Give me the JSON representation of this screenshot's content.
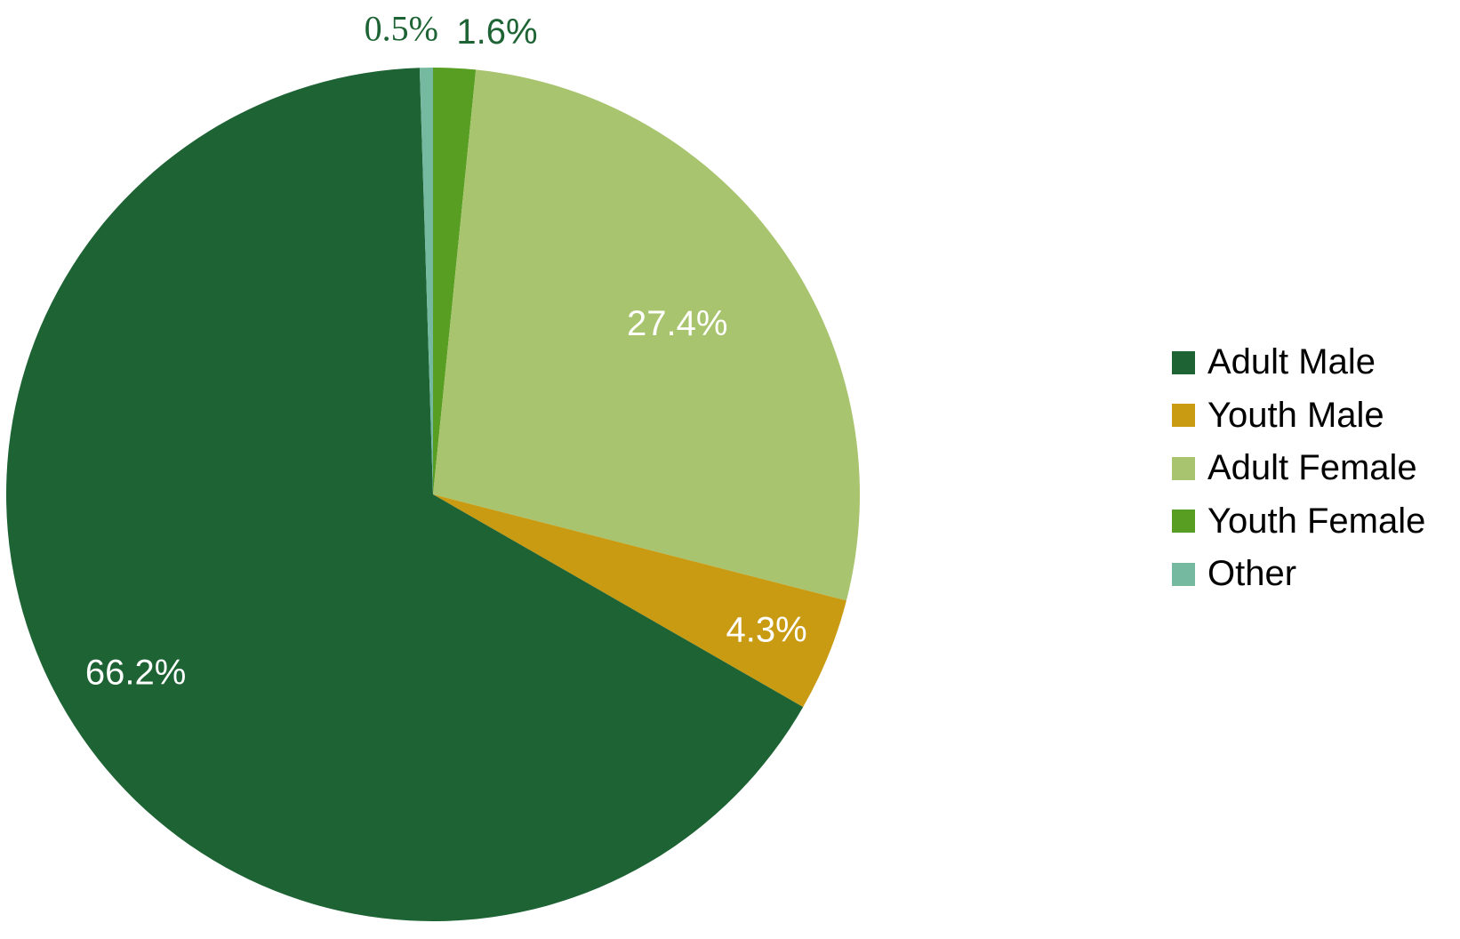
{
  "chart_data": {
    "type": "pie",
    "title": "",
    "start_angle_deg": 0,
    "direction": "clockwise",
    "legend_position": "right",
    "slices": [
      {
        "label": "Youth Female",
        "value": 1.6,
        "value_label": "1.6%",
        "color": "#579e22",
        "label_color": "#1d6334",
        "label_font": "sans"
      },
      {
        "label": "Adult Female",
        "value": 27.4,
        "value_label": "27.4%",
        "color": "#a8c46e",
        "label_color": "#ffffff",
        "label_font": "sans"
      },
      {
        "label": "Youth Male",
        "value": 4.3,
        "value_label": "4.3%",
        "color": "#c99b12",
        "label_color": "#ffffff",
        "label_font": "sans"
      },
      {
        "label": "Adult Male",
        "value": 66.2,
        "value_label": "66.2%",
        "color": "#1d6334",
        "label_color": "#ffffff",
        "label_font": "sans"
      },
      {
        "label": "Other",
        "value": 0.5,
        "value_label": "0.5%",
        "color": "#74b9a0",
        "label_color": "#1d6334",
        "label_font": "serif"
      }
    ],
    "legend": [
      {
        "label": "Adult Male",
        "color": "#1d6334"
      },
      {
        "label": "Youth Male",
        "color": "#c99b12"
      },
      {
        "label": "Adult Female",
        "color": "#a8c46e"
      },
      {
        "label": "Youth Female",
        "color": "#579e22"
      },
      {
        "label": "Other",
        "color": "#74b9a0"
      }
    ]
  }
}
